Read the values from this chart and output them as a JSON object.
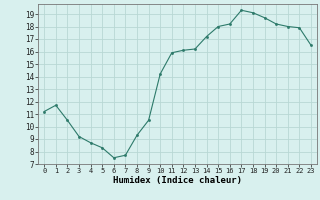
{
  "x": [
    0,
    1,
    2,
    3,
    4,
    5,
    6,
    7,
    8,
    9,
    10,
    11,
    12,
    13,
    14,
    15,
    16,
    17,
    18,
    19,
    20,
    21,
    22,
    23
  ],
  "y": [
    11.2,
    11.7,
    10.5,
    9.2,
    8.7,
    8.3,
    7.5,
    7.7,
    9.3,
    10.5,
    14.2,
    15.9,
    16.1,
    16.2,
    17.2,
    18.0,
    18.2,
    19.3,
    19.1,
    18.7,
    18.2,
    18.0,
    17.9,
    16.5
  ],
  "xlabel": "Humidex (Indice chaleur)",
  "line_color": "#2d7a6a",
  "marker_color": "#2d7a6a",
  "bg_color": "#d8f0ee",
  "grid_color": "#b8d8d4",
  "ylim": [
    7,
    19.8
  ],
  "xlim": [
    -0.5,
    23.5
  ],
  "yticks": [
    7,
    8,
    9,
    10,
    11,
    12,
    13,
    14,
    15,
    16,
    17,
    18,
    19
  ],
  "xticks": [
    0,
    1,
    2,
    3,
    4,
    5,
    6,
    7,
    8,
    9,
    10,
    11,
    12,
    13,
    14,
    15,
    16,
    17,
    18,
    19,
    20,
    21,
    22,
    23
  ]
}
